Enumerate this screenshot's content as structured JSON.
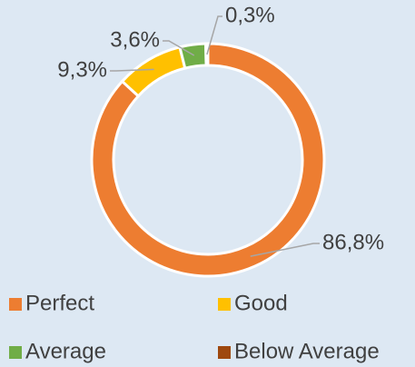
{
  "chart_data": {
    "type": "donut",
    "categories": [
      "Perfect",
      "Good",
      "Average",
      "Below Average"
    ],
    "values": [
      86.8,
      9.3,
      3.6,
      0.3
    ],
    "value_labels": [
      "86,8%",
      "9,3%",
      "3,6%",
      "0,3%"
    ],
    "colors": [
      "#ed7d31",
      "#ffc000",
      "#70ad47",
      "#9e480e"
    ],
    "legend": "bottom"
  }
}
